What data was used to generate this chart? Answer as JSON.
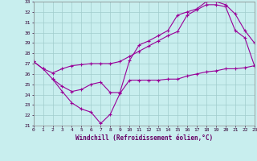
{
  "xlabel": "Windchill (Refroidissement éolien,°C)",
  "bg_color": "#c8eeee",
  "grid_color": "#a0cccc",
  "line_color": "#990099",
  "xlim": [
    0,
    23
  ],
  "ylim": [
    21,
    33
  ],
  "yticks": [
    21,
    22,
    23,
    24,
    25,
    26,
    27,
    28,
    29,
    30,
    31,
    32,
    33
  ],
  "xticks": [
    0,
    1,
    2,
    3,
    4,
    5,
    6,
    7,
    8,
    9,
    10,
    11,
    12,
    13,
    14,
    15,
    16,
    17,
    18,
    19,
    20,
    21,
    22,
    23
  ],
  "line1_x": [
    0,
    1,
    2,
    3,
    4,
    5,
    6,
    7,
    8,
    9,
    10,
    11,
    12,
    13,
    14,
    15,
    16,
    17,
    18,
    19,
    20,
    21,
    22,
    23
  ],
  "line1_y": [
    27.2,
    26.5,
    26.1,
    26.5,
    26.8,
    26.9,
    27.0,
    27.0,
    27.0,
    27.2,
    27.7,
    28.2,
    28.7,
    29.2,
    29.7,
    30.1,
    31.7,
    32.2,
    32.7,
    32.7,
    32.5,
    30.2,
    29.5,
    26.8
  ],
  "line2_x": [
    0,
    1,
    2,
    3,
    4,
    5,
    6,
    7,
    8,
    9,
    10,
    11,
    12,
    13,
    14,
    15,
    16,
    17,
    18,
    19,
    20,
    21,
    22,
    23
  ],
  "line2_y": [
    27.2,
    26.5,
    25.5,
    24.3,
    23.2,
    22.6,
    22.3,
    21.2,
    22.1,
    24.1,
    25.4,
    25.4,
    25.4,
    25.4,
    25.5,
    25.5,
    25.8,
    26.0,
    26.2,
    26.3,
    26.5,
    26.5,
    26.6,
    26.8
  ],
  "line3_x": [
    2,
    3,
    4,
    5,
    6,
    7,
    8,
    9,
    10,
    11,
    12,
    13,
    14,
    15,
    16,
    17,
    18,
    19,
    20,
    21,
    22,
    23
  ],
  "line3_y": [
    25.5,
    24.8,
    24.3,
    24.5,
    25.0,
    25.2,
    24.2,
    24.2,
    27.3,
    28.8,
    29.2,
    29.7,
    30.2,
    31.7,
    32.0,
    32.3,
    33.0,
    33.0,
    32.7,
    31.8,
    30.2,
    29.0
  ]
}
